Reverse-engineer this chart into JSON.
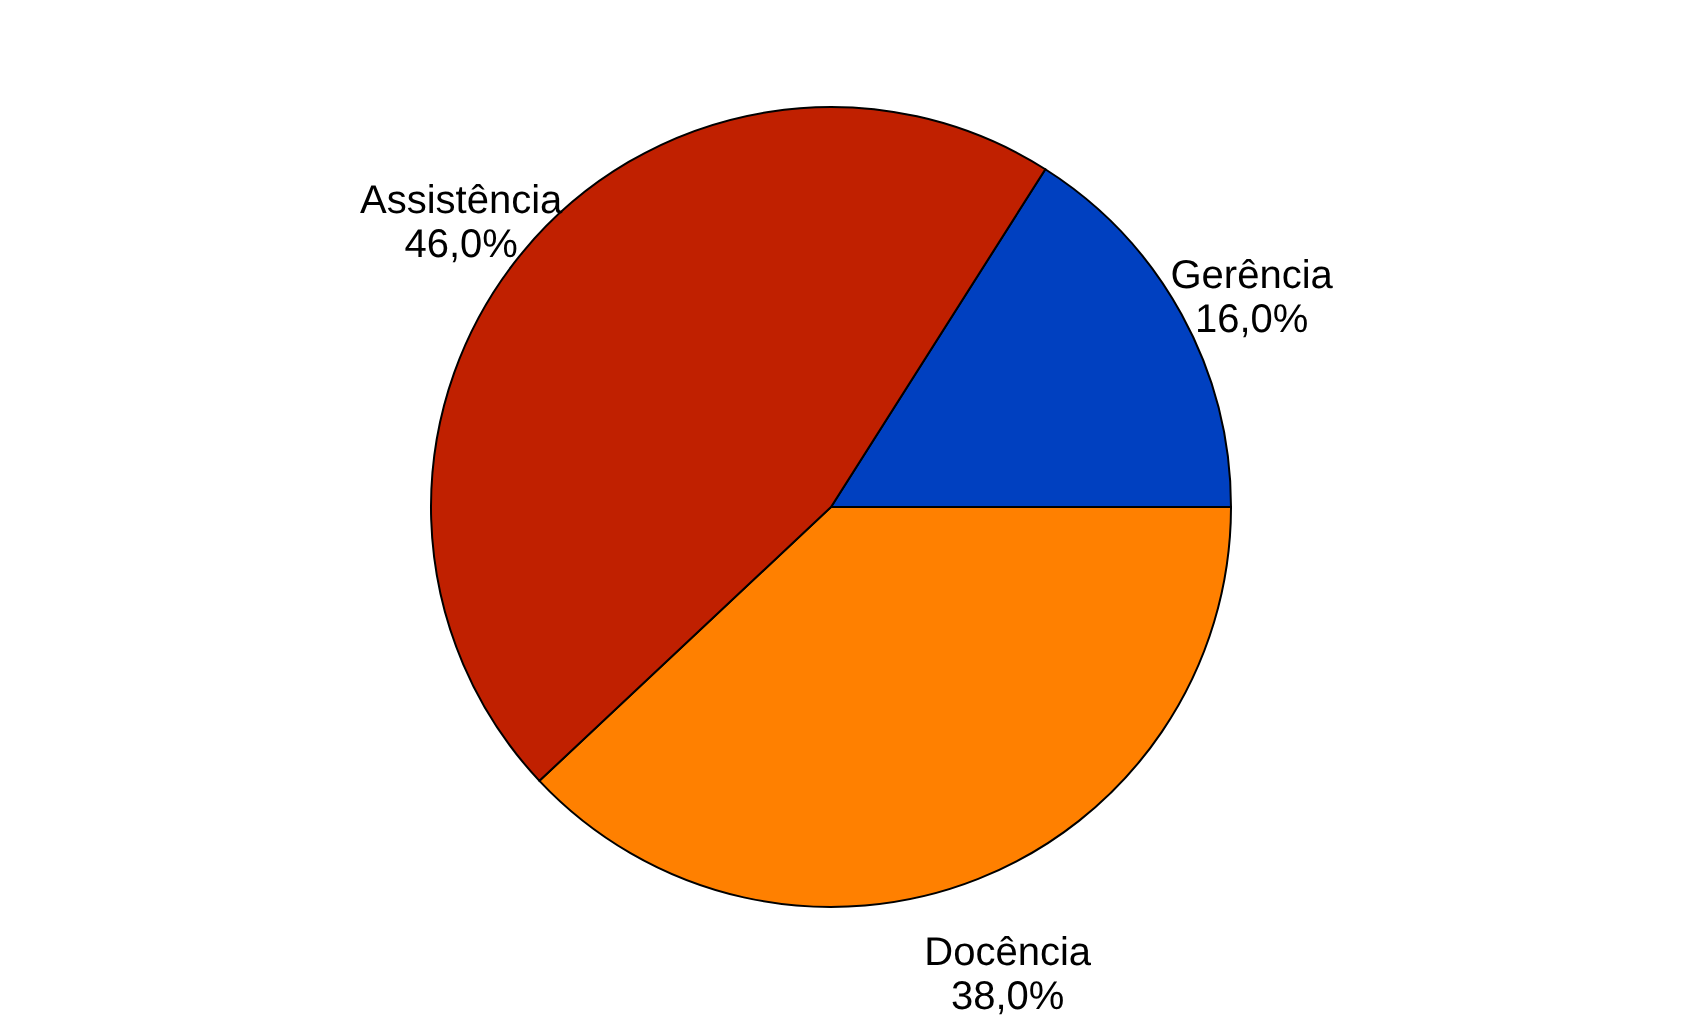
{
  "chart_data": {
    "type": "pie",
    "categories": [
      "Gerência",
      "Docência",
      "Assistência"
    ],
    "values": [
      16.0,
      38.0,
      46.0
    ],
    "colors": [
      "#0040c0",
      "#ff8000",
      "#c02000"
    ],
    "value_labels": [
      "16,0%",
      "38,0%",
      "46,0%"
    ],
    "legend": false
  }
}
